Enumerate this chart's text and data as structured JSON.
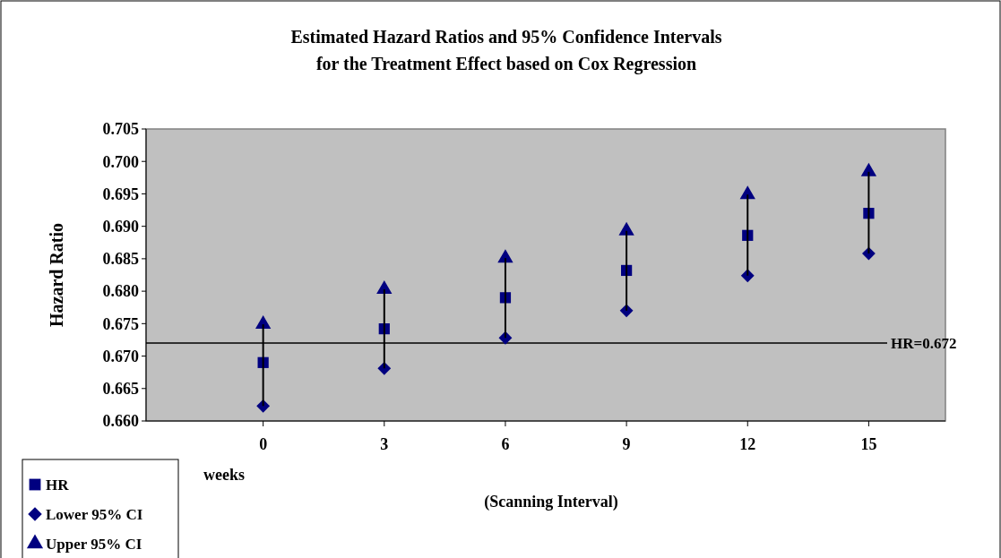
{
  "chart_data": {
    "type": "scatter",
    "title": "Estimated Hazard Ratios and 95% Confidence Intervals\nfor the Treatment Effect based on Cox Regression",
    "ylabel": "Hazard Ratio",
    "xlabel": "(Scanning Interval)",
    "annotations": [
      "weeks"
    ],
    "x": [
      0,
      3,
      6,
      9,
      12,
      15
    ],
    "xlim": [
      -2.9,
      16.9
    ],
    "xticks": [
      0,
      3,
      6,
      9,
      12,
      15
    ],
    "ylim": [
      0.66,
      0.705
    ],
    "yticks": [
      {
        "value": 0.66,
        "label": "0.660"
      },
      {
        "value": 0.665,
        "label": "0.665"
      },
      {
        "value": 0.67,
        "label": "0.670"
      },
      {
        "value": 0.675,
        "label": "0.675"
      },
      {
        "value": 0.68,
        "label": "0.680"
      },
      {
        "value": 0.685,
        "label": "0.685"
      },
      {
        "value": 0.69,
        "label": "0.690"
      },
      {
        "value": 0.695,
        "label": "0.695"
      },
      {
        "value": 0.7,
        "label": "0.700"
      },
      {
        "value": 0.705,
        "label": "0.705"
      }
    ],
    "series": [
      {
        "name": "HR",
        "color": "#000080",
        "marker": "square",
        "values": [
          0.669,
          0.6742,
          0.679,
          0.6832,
          0.6886,
          0.692
        ],
        "errors": [
          [
            0.6623,
            0.6749
          ],
          [
            0.6681,
            0.6803
          ],
          [
            0.6728,
            0.6851
          ],
          [
            0.677,
            0.6893
          ],
          [
            0.6824,
            0.6949
          ],
          [
            0.6858,
            0.6984
          ]
        ]
      },
      {
        "name": "Lower 95% CI",
        "color": "#000080",
        "marker": "diamond",
        "values": [
          0.6623,
          0.6681,
          0.6728,
          0.677,
          0.6824,
          0.6858
        ]
      },
      {
        "name": "Upper 95% CI",
        "color": "#000080",
        "marker": "triangle",
        "values": [
          0.6749,
          0.6803,
          0.6851,
          0.6893,
          0.6949,
          0.6984
        ]
      }
    ],
    "ref_lines": [
      {
        "axis": "y",
        "value": 0.672,
        "label": "HR=0.672",
        "color": "#000000"
      }
    ],
    "legend": "bottom left",
    "grid": false
  }
}
